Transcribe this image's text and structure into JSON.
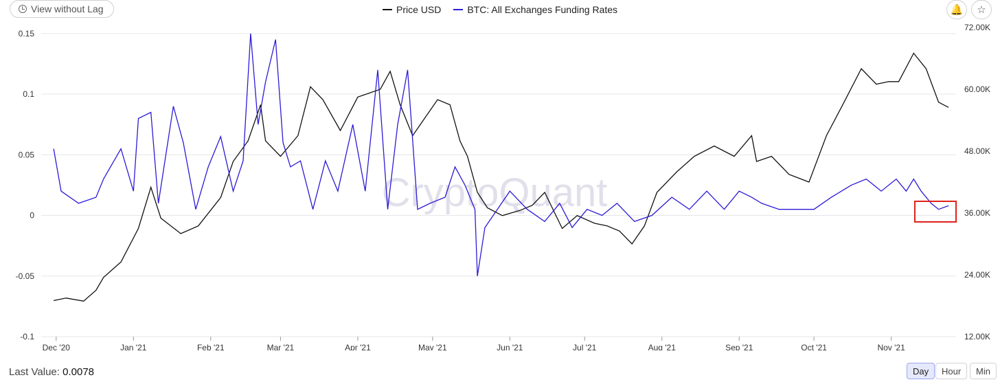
{
  "toolbar": {
    "view_without_lag_label": "View without Lag",
    "bell_icon": "bell-icon",
    "star_icon": "star-icon"
  },
  "legend": {
    "price_label": "Price USD",
    "funding_label": "BTC: All Exchanges Funding Rates"
  },
  "footer": {
    "last_value_label": "Last Value:",
    "last_value": "0.0078"
  },
  "ranges": {
    "day": "Day",
    "hour": "Hour",
    "min": "Min",
    "selected": "Day"
  },
  "watermark": "CryptoQuant",
  "colors": {
    "price": "#111111",
    "funding": "#2b1ad6",
    "highlight": "#e0201b",
    "grid": "#e6e6ea"
  },
  "chart_data": {
    "type": "line",
    "x_axis": {
      "labels": [
        "Dec '20",
        "Jan '21",
        "Feb '21",
        "Mar '21",
        "Apr '21",
        "May '21",
        "Jun '21",
        "Jul '21",
        "Aug '21",
        "Sep '21",
        "Oct '21",
        "Nov '21"
      ]
    },
    "left_axis": {
      "ticks": [
        "0.15",
        "0.1",
        "0.05",
        "0",
        "-0.05",
        "-0.1"
      ],
      "range": [
        -0.1,
        0.155
      ]
    },
    "right_axis": {
      "ticks": [
        "72.00K",
        "60.00K",
        "48.00K",
        "36.00K",
        "24.00K",
        "12.00K"
      ],
      "range": [
        12000,
        72000
      ]
    },
    "series": [
      {
        "name": "Price USD",
        "axis": "right",
        "x": [
          "2020-11-30",
          "2020-12-05",
          "2020-12-12",
          "2020-12-17",
          "2020-12-20",
          "2020-12-27",
          "2021-01-03",
          "2021-01-08",
          "2021-01-12",
          "2021-01-20",
          "2021-01-27",
          "2021-02-05",
          "2021-02-10",
          "2021-02-16",
          "2021-02-21",
          "2021-02-23",
          "2021-03-01",
          "2021-03-08",
          "2021-03-13",
          "2021-03-18",
          "2021-03-25",
          "2021-04-01",
          "2021-04-10",
          "2021-04-14",
          "2021-04-18",
          "2021-04-23",
          "2021-04-28",
          "2021-05-03",
          "2021-05-08",
          "2021-05-12",
          "2021-05-15",
          "2021-05-19",
          "2021-05-23",
          "2021-05-29",
          "2021-06-05",
          "2021-06-10",
          "2021-06-15",
          "2021-06-22",
          "2021-06-28",
          "2021-07-05",
          "2021-07-10",
          "2021-07-15",
          "2021-07-20",
          "2021-07-25",
          "2021-07-30",
          "2021-08-07",
          "2021-08-14",
          "2021-08-22",
          "2021-08-30",
          "2021-09-06",
          "2021-09-08",
          "2021-09-14",
          "2021-09-21",
          "2021-09-29",
          "2021-10-06",
          "2021-10-12",
          "2021-10-20",
          "2021-10-26",
          "2021-10-31",
          "2021-11-04",
          "2021-11-10",
          "2021-11-15",
          "2021-11-20",
          "2021-11-24"
        ],
        "values": [
          19000,
          19500,
          18900,
          21000,
          23500,
          26500,
          33000,
          41000,
          35000,
          32000,
          33500,
          39000,
          46000,
          50000,
          57000,
          50000,
          47000,
          51000,
          60500,
          58000,
          52000,
          58500,
          60000,
          63500,
          57000,
          51000,
          54500,
          58000,
          57000,
          50000,
          47000,
          40000,
          37000,
          35500,
          36500,
          37500,
          40000,
          33000,
          35500,
          34000,
          33500,
          32500,
          30000,
          33500,
          40000,
          44000,
          47000,
          49000,
          47000,
          51000,
          46000,
          47000,
          43500,
          42000,
          51000,
          56500,
          64000,
          61000,
          61500,
          61500,
          67000,
          64000,
          57500,
          56500
        ]
      },
      {
        "name": "BTC: All Exchanges Funding Rates",
        "axis": "left",
        "x": [
          "2020-11-30",
          "2020-12-03",
          "2020-12-10",
          "2020-12-17",
          "2020-12-20",
          "2020-12-27",
          "2021-01-01",
          "2021-01-03",
          "2021-01-08",
          "2021-01-11",
          "2021-01-17",
          "2021-01-21",
          "2021-01-26",
          "2021-01-31",
          "2021-02-05",
          "2021-02-10",
          "2021-02-14",
          "2021-02-17",
          "2021-02-20",
          "2021-02-23",
          "2021-02-27",
          "2021-03-02",
          "2021-03-05",
          "2021-03-09",
          "2021-03-14",
          "2021-03-19",
          "2021-03-24",
          "2021-03-30",
          "2021-04-04",
          "2021-04-09",
          "2021-04-13",
          "2021-04-17",
          "2021-04-21",
          "2021-04-25",
          "2021-04-30",
          "2021-05-06",
          "2021-05-10",
          "2021-05-14",
          "2021-05-18",
          "2021-05-19",
          "2021-05-22",
          "2021-05-27",
          "2021-06-01",
          "2021-06-08",
          "2021-06-15",
          "2021-06-21",
          "2021-06-26",
          "2021-07-02",
          "2021-07-08",
          "2021-07-14",
          "2021-07-21",
          "2021-07-28",
          "2021-08-05",
          "2021-08-12",
          "2021-08-19",
          "2021-08-26",
          "2021-09-01",
          "2021-09-06",
          "2021-09-10",
          "2021-09-17",
          "2021-09-24",
          "2021-10-01",
          "2021-10-08",
          "2021-10-16",
          "2021-10-22",
          "2021-10-28",
          "2021-11-03",
          "2021-11-07",
          "2021-11-10",
          "2021-11-13",
          "2021-11-17",
          "2021-11-20",
          "2021-11-24"
        ],
        "values": [
          0.055,
          0.02,
          0.01,
          0.015,
          0.03,
          0.055,
          0.02,
          0.08,
          0.085,
          0.01,
          0.09,
          0.06,
          0.005,
          0.04,
          0.065,
          0.02,
          0.045,
          0.15,
          0.075,
          0.11,
          0.145,
          0.06,
          0.04,
          0.045,
          0.005,
          0.045,
          0.02,
          0.075,
          0.02,
          0.12,
          0.005,
          0.075,
          0.12,
          0.005,
          0.01,
          0.015,
          0.04,
          0.025,
          0.005,
          -0.05,
          -0.01,
          0.005,
          0.02,
          0.005,
          -0.005,
          0.01,
          -0.01,
          0.005,
          0.0,
          0.01,
          -0.005,
          0.0,
          0.015,
          0.005,
          0.02,
          0.005,
          0.02,
          0.015,
          0.01,
          0.005,
          0.005,
          0.005,
          0.015,
          0.025,
          0.03,
          0.02,
          0.03,
          0.02,
          0.03,
          0.02,
          0.01,
          0.005,
          0.008
        ]
      }
    ],
    "grid": true,
    "legend_position": "top"
  }
}
